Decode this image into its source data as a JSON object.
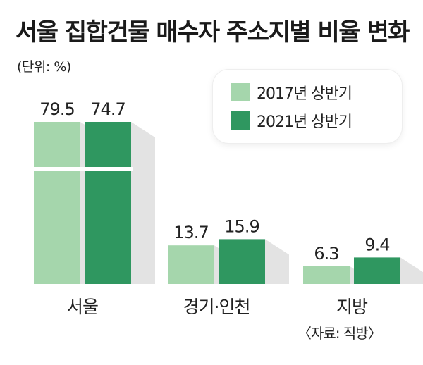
{
  "title": "서울 집합건물 매수자 주소지별 비율 변화",
  "unit_label": "(단위: %)",
  "source": "〈자료: 직방〉",
  "colors": {
    "light": "#a5d6ac",
    "dark": "#2f9760",
    "shadow": "#e3e3e3",
    "text": "#222222"
  },
  "chart_data": {
    "type": "bar",
    "categories": [
      "서울",
      "경기·인천",
      "지방"
    ],
    "series": [
      {
        "name": "2017년 상반기",
        "values": [
          79.5,
          13.7,
          6.3
        ]
      },
      {
        "name": "2021년 상반기",
        "values": [
          74.7,
          15.9,
          9.4
        ]
      }
    ],
    "value_labels": [
      [
        "79.5",
        "13.7",
        "6.3"
      ],
      [
        "74.7",
        "15.9",
        "9.4"
      ]
    ],
    "title": "서울 집합건물 매수자 주소지별 비율 변화",
    "xlabel": "",
    "ylabel": "",
    "ylim": [
      0,
      80
    ],
    "axis_break": true,
    "grid": false,
    "legend_position": "top-right"
  }
}
